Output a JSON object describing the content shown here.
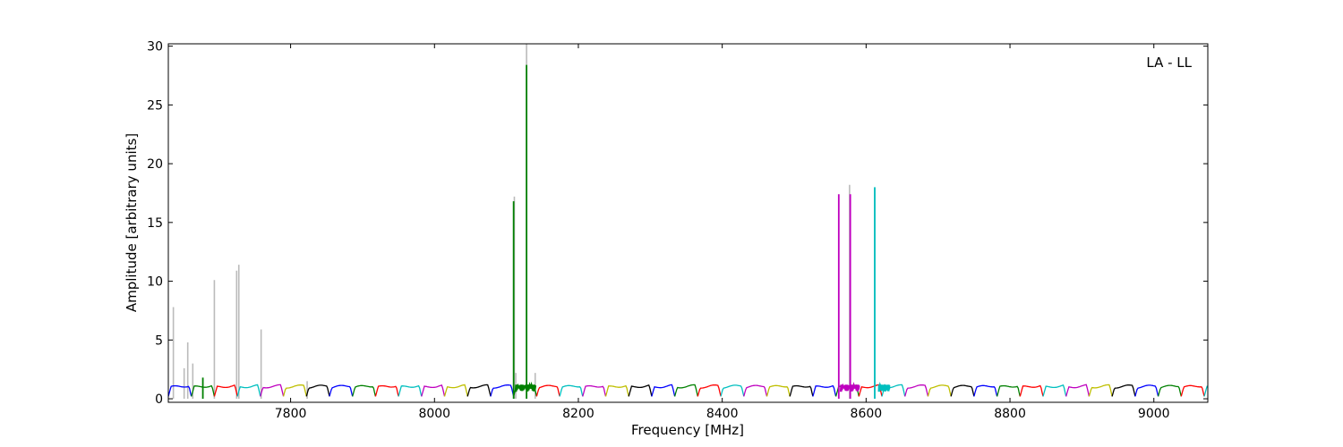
{
  "chart_data": {
    "type": "line",
    "title": "",
    "annotation": "LA - LL",
    "xlabel": "Frequency [MHz]",
    "ylabel": "Amplitude [arbitrary units]",
    "xlim": [
      7630,
      9075
    ],
    "ylim": [
      -0.3,
      30.2
    ],
    "xticks": [
      7800,
      8000,
      8200,
      8400,
      8600,
      8800,
      9000
    ],
    "yticks": [
      0,
      5,
      10,
      15,
      20,
      25,
      30
    ],
    "grid": false,
    "legend": "none",
    "channel_width_mhz": 32,
    "channel_start_mhz": 7630,
    "channel_colors": [
      "#0000ff",
      "#008000",
      "#ff0000",
      "#00bfbf",
      "#bf00bf",
      "#bfbf00",
      "#000000"
    ],
    "flagged_color": "#bbbbbb",
    "flagged_spikes": [
      {
        "x": 7637,
        "y": 7.8
      },
      {
        "x": 7652,
        "y": 2.6
      },
      {
        "x": 7657,
        "y": 4.8
      },
      {
        "x": 7664,
        "y": 3.0
      },
      {
        "x": 7694,
        "y": 10.1
      },
      {
        "x": 7725,
        "y": 10.9
      },
      {
        "x": 7728,
        "y": 11.4
      },
      {
        "x": 7759,
        "y": 5.9
      },
      {
        "x": 7823,
        "y": 1.5
      },
      {
        "x": 8111,
        "y": 17.2
      },
      {
        "x": 8113,
        "y": 2.2
      },
      {
        "x": 8128,
        "y": 30.2
      },
      {
        "x": 8140,
        "y": 2.2
      },
      {
        "x": 8577,
        "y": 18.2
      },
      {
        "x": 8612,
        "y": 17.9
      }
    ],
    "signal_spikes": [
      {
        "x": 7678,
        "y": 1.8,
        "color": "#008000"
      },
      {
        "x": 8110,
        "y": 16.8,
        "color": "#008000"
      },
      {
        "x": 8128,
        "y": 28.4,
        "color": "#008000"
      },
      {
        "x": 8562,
        "y": 17.4,
        "color": "#bf00bf"
      },
      {
        "x": 8578,
        "y": 17.4,
        "color": "#bf00bf"
      },
      {
        "x": 8612,
        "y": 18.0,
        "color": "#00bfbf"
      }
    ]
  }
}
